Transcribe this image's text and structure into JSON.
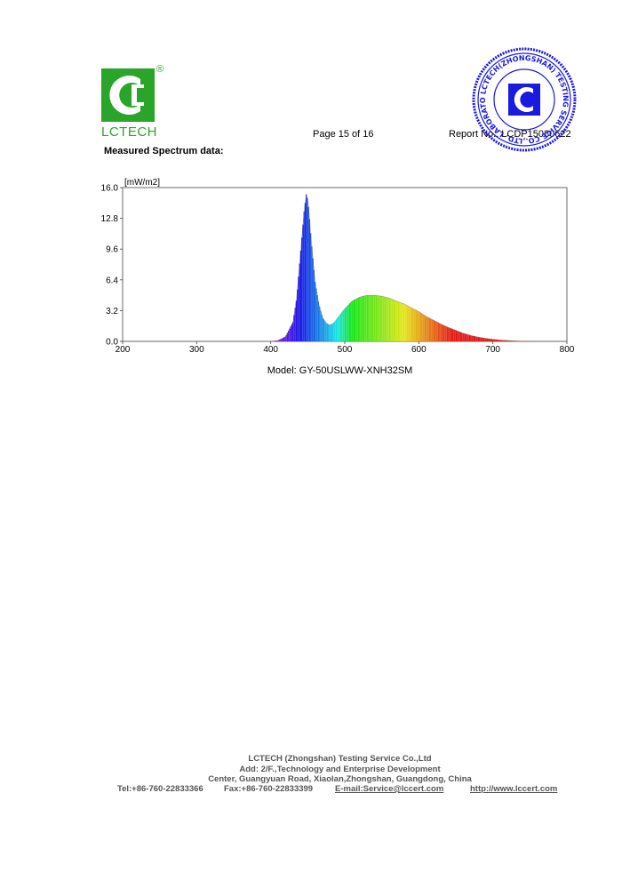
{
  "header": {
    "logo_text": "LCTECH",
    "registered_mark": "®",
    "page": "Page 15 of 16",
    "report_no": "Report No.: LCDP15080622",
    "stamp_text": "LCTECH(ZHONGSHAN) TESTING SERVICE CO.,LTD. LABORATORY",
    "colors": {
      "brand_green": "#2aa52a",
      "stamp_blue": "#1a1ae0"
    }
  },
  "section_title": "Measured Spectrum data:",
  "model_caption": "Model: GY-50USLWW-XNH32SM",
  "chart_data": {
    "type": "area",
    "title": "",
    "xlabel": "",
    "ylabel": "[mW/m2]",
    "xlim": [
      200,
      800
    ],
    "ylim": [
      0,
      16
    ],
    "x_ticks": [
      "200",
      "300",
      "400",
      "500",
      "600",
      "700",
      "800"
    ],
    "y_ticks": [
      "0.0",
      "3.2",
      "6.4",
      "9.6",
      "12.8",
      "16.0"
    ],
    "grid": false,
    "x": [
      400,
      410,
      420,
      430,
      435,
      440,
      445,
      448,
      450,
      452,
      455,
      460,
      465,
      470,
      475,
      480,
      485,
      490,
      500,
      510,
      520,
      530,
      540,
      550,
      560,
      570,
      580,
      590,
      600,
      610,
      620,
      630,
      640,
      650,
      660,
      670,
      680,
      690,
      700,
      710,
      720,
      730,
      740,
      750,
      760
    ],
    "y": [
      0.0,
      0.1,
      0.5,
      2.0,
      4.5,
      9.0,
      13.5,
      15.3,
      14.8,
      13.2,
      10.3,
      6.2,
      3.9,
      2.5,
      1.9,
      1.7,
      1.9,
      2.4,
      3.4,
      4.2,
      4.6,
      4.8,
      4.8,
      4.7,
      4.5,
      4.2,
      3.9,
      3.5,
      3.1,
      2.6,
      2.2,
      1.8,
      1.45,
      1.15,
      0.85,
      0.62,
      0.45,
      0.32,
      0.22,
      0.14,
      0.09,
      0.05,
      0.02,
      0.01,
      0.0
    ]
  },
  "footer": {
    "company": "LCTECH (Zhongshan) Testing Service Co.,Ltd",
    "address_1": "Add: 2/F.,Technology and Enterprise Development",
    "address_2": "Center, Guangyuan Road, Xiaolan,Zhongshan, Guangdong, China",
    "tel": "Tel:+86-760-22833366",
    "fax": "Fax:+86-760-22833399",
    "email": "E-mail:Service@lccert.com",
    "web": "http://www.lccert.com"
  }
}
